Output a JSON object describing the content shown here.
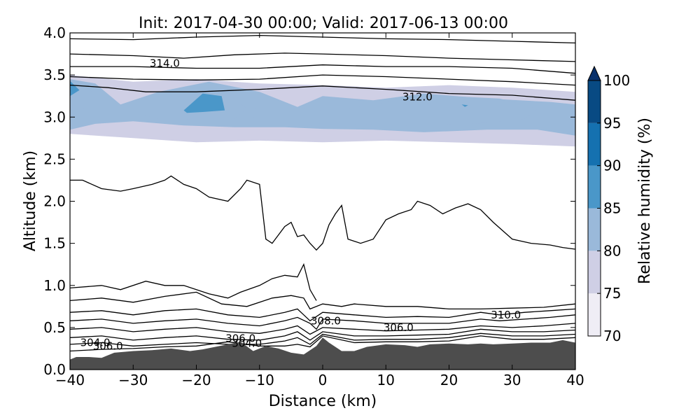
{
  "chart_data": {
    "type": "cross-section",
    "title": "Init: 2017-04-30 00:00; Valid: 2017-06-13 00:00",
    "xlabel": "Distance (km)",
    "ylabel": "Altitude (km)",
    "xlim": [
      -40,
      40
    ],
    "ylim": [
      0.0,
      4.0
    ],
    "x_ticks": [
      "−40",
      "−30",
      "−20",
      "−10",
      "0",
      "10",
      "20",
      "30",
      "40"
    ],
    "y_ticks": [
      "0.0",
      "0.5",
      "1.0",
      "1.5",
      "2.0",
      "2.5",
      "3.0",
      "3.5",
      "4.0"
    ],
    "grid": false,
    "colorbar": {
      "label": "Relative humidity (%)",
      "ticks": [
        "70",
        "75",
        "80",
        "85",
        "90",
        "95",
        "100"
      ],
      "levels": [
        70,
        75,
        80,
        85,
        90,
        95,
        100
      ],
      "colors": [
        "#efedf5",
        "#cfcfe5",
        "#9ab9da",
        "#4a97c9",
        "#1571b0",
        "#084a83"
      ],
      "extend": "max",
      "extend_color": "#08306b"
    },
    "terrain": {
      "color": "#4d4d4d",
      "x": [
        -40,
        -39,
        -37,
        -35,
        -33,
        -30,
        -27,
        -24,
        -21,
        -19,
        -17,
        -15,
        -13,
        -11,
        -9,
        -7,
        -5,
        -3,
        -1,
        0,
        1,
        3,
        5,
        7,
        10,
        13,
        15,
        17,
        20,
        23,
        25,
        27,
        30,
        33,
        36,
        38,
        40
      ],
      "y": [
        0.12,
        0.15,
        0.15,
        0.14,
        0.2,
        0.22,
        0.23,
        0.25,
        0.22,
        0.24,
        0.27,
        0.3,
        0.33,
        0.22,
        0.28,
        0.25,
        0.2,
        0.18,
        0.28,
        0.38,
        0.32,
        0.22,
        0.22,
        0.27,
        0.3,
        0.29,
        0.27,
        0.3,
        0.31,
        0.3,
        0.31,
        0.3,
        0.31,
        0.32,
        0.32,
        0.35,
        0.32
      ]
    },
    "rh_regions": [
      {
        "level": 75,
        "x": [
          -40,
          -30,
          -20,
          -10,
          0,
          10,
          20,
          30,
          40,
          40,
          30,
          20,
          10,
          0,
          -10,
          -20,
          -30,
          -40
        ],
        "y": [
          3.5,
          3.42,
          3.45,
          3.4,
          3.38,
          3.35,
          3.38,
          3.35,
          3.3,
          2.65,
          2.68,
          2.7,
          2.72,
          2.7,
          2.72,
          2.7,
          2.75,
          2.8
        ]
      },
      {
        "level": 80,
        "x": [
          -40,
          -36,
          -32,
          -26,
          -18,
          -10,
          -4,
          0,
          8,
          16,
          26,
          36,
          40,
          40,
          34,
          26,
          16,
          8,
          0,
          -6,
          -14,
          -22,
          -30,
          -36,
          -40
        ],
        "y": [
          3.45,
          3.4,
          3.15,
          3.3,
          3.42,
          3.3,
          3.12,
          3.25,
          3.2,
          3.28,
          3.22,
          3.18,
          3.15,
          2.78,
          2.85,
          2.85,
          2.82,
          2.85,
          2.86,
          2.88,
          2.88,
          2.9,
          2.95,
          2.92,
          2.85
        ]
      },
      {
        "level": 80,
        "x": [
          -40,
          -38,
          -36,
          -37,
          -40
        ],
        "y": [
          3.45,
          3.42,
          3.25,
          3.1,
          3.08
        ]
      },
      {
        "level": 80,
        "x": [
          -28,
          -24,
          -20,
          -15,
          -12,
          -14,
          -20,
          -26,
          -29
        ],
        "y": [
          3.1,
          3.25,
          3.3,
          3.28,
          3.1,
          2.98,
          2.97,
          2.98,
          3.03
        ]
      },
      {
        "level": 80,
        "x": [
          -11,
          -9,
          -9.5,
          -11
        ],
        "y": [
          3.1,
          3.08,
          2.97,
          3.0
        ]
      },
      {
        "level": 80,
        "x": [
          -3,
          0,
          -0.5,
          -3,
          -3.5
        ],
        "y": [
          3.1,
          3.08,
          2.92,
          2.88,
          2.98
        ]
      },
      {
        "level": 80,
        "x": [
          4,
          12,
          20,
          28,
          34,
          32,
          24,
          14,
          4
        ],
        "y": [
          3.1,
          3.2,
          3.25,
          3.22,
          3.1,
          2.98,
          2.92,
          2.9,
          2.92
        ]
      },
      {
        "level": 85,
        "x": [
          -22,
          -19,
          -16,
          -15.5,
          -19,
          -21.5
        ],
        "y": [
          3.08,
          3.28,
          3.25,
          3.08,
          3.06,
          3.05
        ]
      },
      {
        "level": 85,
        "x": [
          22,
          23,
          22.5
        ],
        "y": [
          3.15,
          3.14,
          3.12
        ]
      },
      {
        "level": 85,
        "x": [
          -40,
          -38.5,
          -40
        ],
        "y": [
          3.43,
          3.32,
          3.25
        ]
      }
    ],
    "contours": [
      {
        "x": [
          -40,
          -30,
          -20,
          -10,
          0,
          10,
          20,
          30,
          40
        ],
        "y": [
          3.93,
          3.92,
          3.95,
          3.97,
          3.95,
          3.93,
          3.92,
          3.9,
          3.88
        ]
      },
      {
        "x": [
          -40,
          -30,
          -22,
          -14,
          -6,
          0,
          10,
          20,
          30,
          40
        ],
        "y": [
          3.75,
          3.73,
          3.7,
          3.74,
          3.76,
          3.75,
          3.73,
          3.7,
          3.68,
          3.66
        ]
      },
      {
        "x": [
          -40,
          -30,
          -20,
          -10,
          0,
          10,
          20,
          30,
          40
        ],
        "y": [
          3.6,
          3.6,
          3.58,
          3.58,
          3.62,
          3.6,
          3.6,
          3.58,
          3.52
        ]
      },
      {
        "x": [
          -40,
          -30,
          -20,
          -10,
          0,
          10,
          20,
          30,
          40
        ],
        "y": [
          3.48,
          3.45,
          3.44,
          3.45,
          3.5,
          3.48,
          3.45,
          3.42,
          3.38
        ]
      },
      {
        "x": [
          -40,
          -34,
          -28,
          -20,
          -10,
          0,
          10,
          20,
          30,
          40
        ],
        "y": [
          3.38,
          3.35,
          3.3,
          3.3,
          3.33,
          3.37,
          3.33,
          3.28,
          3.26,
          3.2
        ]
      },
      {
        "x": [
          -40,
          -38,
          -35,
          -32,
          -30,
          -27,
          -25,
          -24,
          -22,
          -20,
          -18,
          -15,
          -13,
          -12,
          -10,
          -9,
          -8,
          -6,
          -5,
          -4,
          -3,
          -2,
          -1,
          0,
          1,
          2,
          3,
          4,
          6,
          8,
          10,
          12,
          14,
          15,
          17,
          19,
          21,
          23,
          25,
          27,
          30,
          33,
          36,
          38,
          40
        ],
        "y": [
          2.25,
          2.25,
          2.15,
          2.12,
          2.15,
          2.2,
          2.25,
          2.3,
          2.2,
          2.15,
          2.05,
          2.0,
          2.15,
          2.25,
          2.2,
          1.55,
          1.5,
          1.7,
          1.75,
          1.58,
          1.6,
          1.5,
          1.42,
          1.5,
          1.72,
          1.85,
          1.95,
          1.55,
          1.5,
          1.55,
          1.78,
          1.85,
          1.9,
          2.0,
          1.95,
          1.85,
          1.92,
          1.97,
          1.9,
          1.75,
          1.55,
          1.5,
          1.48,
          1.45,
          1.43
        ]
      },
      {
        "x": [
          -40,
          -35,
          -32,
          -28,
          -25,
          -22,
          -18,
          -15,
          -13,
          -10,
          -8,
          -6,
          -4,
          -3,
          -2,
          -1
        ],
        "y": [
          0.97,
          1.0,
          0.95,
          1.05,
          1.0,
          1.0,
          0.9,
          0.85,
          0.92,
          1.0,
          1.08,
          1.12,
          1.1,
          1.25,
          0.95,
          0.82
        ]
      },
      {
        "x": [
          -40,
          -35,
          -30,
          -25,
          -20,
          -16,
          -12,
          -8,
          -5,
          -3,
          -2,
          0,
          3,
          5,
          10,
          15,
          20,
          25,
          30,
          35,
          40
        ],
        "y": [
          0.82,
          0.85,
          0.8,
          0.87,
          0.92,
          0.78,
          0.75,
          0.85,
          0.88,
          0.85,
          0.72,
          0.78,
          0.75,
          0.78,
          0.75,
          0.75,
          0.72,
          0.72,
          0.73,
          0.74,
          0.78
        ]
      },
      {
        "x": [
          -40,
          -35,
          -30,
          -25,
          -20,
          -15,
          -10,
          -6,
          -4,
          -3,
          -2,
          0,
          5,
          10,
          15,
          20,
          25,
          28,
          32,
          36,
          40
        ],
        "y": [
          0.68,
          0.7,
          0.65,
          0.7,
          0.72,
          0.65,
          0.62,
          0.68,
          0.72,
          0.65,
          0.58,
          0.68,
          0.65,
          0.62,
          0.63,
          0.62,
          0.68,
          0.65,
          0.68,
          0.7,
          0.72
        ]
      },
      {
        "x": [
          -40,
          -35,
          -30,
          -25,
          -20,
          -15,
          -10,
          -6,
          -4,
          -2,
          -1,
          0,
          5,
          10,
          15,
          20,
          25,
          28,
          32,
          36,
          40
        ],
        "y": [
          0.58,
          0.6,
          0.55,
          0.58,
          0.6,
          0.55,
          0.52,
          0.58,
          0.62,
          0.55,
          0.48,
          0.6,
          0.58,
          0.55,
          0.55,
          0.55,
          0.6,
          0.58,
          0.6,
          0.62,
          0.65
        ]
      },
      {
        "x": [
          -40,
          -35,
          -30,
          -25,
          -20,
          -15,
          -10,
          -6,
          -4,
          -2,
          0,
          5,
          10,
          15,
          20,
          25,
          30,
          35,
          40
        ],
        "y": [
          0.48,
          0.5,
          0.45,
          0.48,
          0.5,
          0.45,
          0.43,
          0.48,
          0.52,
          0.42,
          0.5,
          0.48,
          0.46,
          0.47,
          0.48,
          0.52,
          0.5,
          0.52,
          0.55
        ]
      },
      {
        "x": [
          -40,
          -35,
          -30,
          -25,
          -20,
          -15,
          -10,
          -6,
          -4,
          -2,
          0,
          5,
          10,
          15,
          20,
          25,
          30,
          35,
          40
        ],
        "y": [
          0.38,
          0.4,
          0.35,
          0.38,
          0.4,
          0.36,
          0.35,
          0.4,
          0.45,
          0.35,
          0.45,
          0.4,
          0.4,
          0.41,
          0.42,
          0.48,
          0.45,
          0.45,
          0.47
        ]
      },
      {
        "x": [
          -40,
          -35,
          -30,
          -25,
          -20,
          -15,
          -10,
          -6,
          -4,
          -2,
          0,
          5,
          10,
          15,
          20,
          25,
          30,
          35,
          40
        ],
        "y": [
          0.3,
          0.32,
          0.28,
          0.3,
          0.32,
          0.3,
          0.3,
          0.34,
          0.38,
          0.3,
          0.42,
          0.35,
          0.36,
          0.36,
          0.38,
          0.43,
          0.4,
          0.4,
          0.42
        ]
      },
      {
        "x": [
          -40,
          -35,
          -30,
          -25,
          -20,
          -15,
          -10,
          -6,
          -4,
          -2,
          0,
          5,
          10,
          15,
          20,
          25,
          30,
          35,
          40
        ],
        "y": [
          0.22,
          0.24,
          0.25,
          0.27,
          0.28,
          0.33,
          0.28,
          0.28,
          0.3,
          0.27,
          0.4,
          0.32,
          0.33,
          0.33,
          0.34,
          0.4,
          0.36,
          0.36,
          0.38
        ]
      }
    ],
    "contour_labels": [
      {
        "text": "314.0",
        "x": -25,
        "y": 3.64
      },
      {
        "text": "312.0",
        "x": 15,
        "y": 3.24
      },
      {
        "text": "310.0",
        "x": 29,
        "y": 0.65
      },
      {
        "text": "308.0",
        "x": 0.5,
        "y": 0.58
      },
      {
        "text": "306.0",
        "x": 12,
        "y": 0.5
      },
      {
        "text": "306.0",
        "x": -13,
        "y": 0.37
      },
      {
        "text": "304.0",
        "x": -12,
        "y": 0.31
      },
      {
        "text": "304.0",
        "x": -36,
        "y": 0.32
      },
      {
        "text": "306.0",
        "x": -34,
        "y": 0.28
      }
    ]
  }
}
